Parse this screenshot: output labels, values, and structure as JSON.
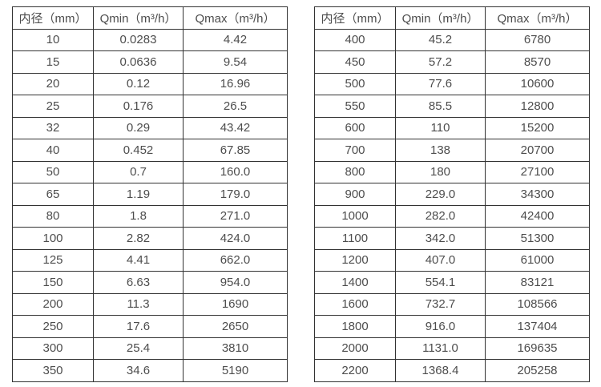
{
  "page": {
    "background_color": "#ffffff",
    "text_color": "#4d4d4d",
    "border_color": "#333333"
  },
  "tables": [
    {
      "name": "flow-rate-table-small-diameters",
      "headers": [
        "内径（mm）",
        "Qmin（m³/h）",
        "Qmax（m³/h）"
      ],
      "rows": [
        [
          "10",
          "0.0283",
          "4.42"
        ],
        [
          "15",
          "0.0636",
          "9.54"
        ],
        [
          "20",
          "0.12",
          "16.96"
        ],
        [
          "25",
          "0.176",
          "26.5"
        ],
        [
          "32",
          "0.29",
          "43.42"
        ],
        [
          "40",
          "0.452",
          "67.85"
        ],
        [
          "50",
          "0.7",
          "160.0"
        ],
        [
          "65",
          "1.19",
          "179.0"
        ],
        [
          "80",
          "1.8",
          "271.0"
        ],
        [
          "100",
          "2.82",
          "424.0"
        ],
        [
          "125",
          "4.41",
          "662.0"
        ],
        [
          "150",
          "6.63",
          "954.0"
        ],
        [
          "200",
          "11.3",
          "1690"
        ],
        [
          "250",
          "17.6",
          "2650"
        ],
        [
          "300",
          "25.4",
          "3810"
        ],
        [
          "350",
          "34.6",
          "5190"
        ]
      ]
    },
    {
      "name": "flow-rate-table-large-diameters",
      "headers": [
        "内径（mm）",
        "Qmin（m³/h）",
        "Qmax（m³/h）"
      ],
      "rows": [
        [
          "400",
          "45.2",
          "6780"
        ],
        [
          "450",
          "57.2",
          "8570"
        ],
        [
          "500",
          "77.6",
          "10600"
        ],
        [
          "550",
          "85.5",
          "12800"
        ],
        [
          "600",
          "110",
          "15200"
        ],
        [
          "700",
          "138",
          "20700"
        ],
        [
          "800",
          "180",
          "27100"
        ],
        [
          "900",
          "229.0",
          "34300"
        ],
        [
          "1000",
          "282.0",
          "42400"
        ],
        [
          "1100",
          "342.0",
          "51300"
        ],
        [
          "1200",
          "407.0",
          "61000"
        ],
        [
          "1400",
          "554.1",
          "83121"
        ],
        [
          "1600",
          "732.7",
          "108566"
        ],
        [
          "1800",
          "916.0",
          "137404"
        ],
        [
          "2000",
          "1131.0",
          "169635"
        ],
        [
          "2200",
          "1368.4",
          "205258"
        ]
      ]
    }
  ]
}
